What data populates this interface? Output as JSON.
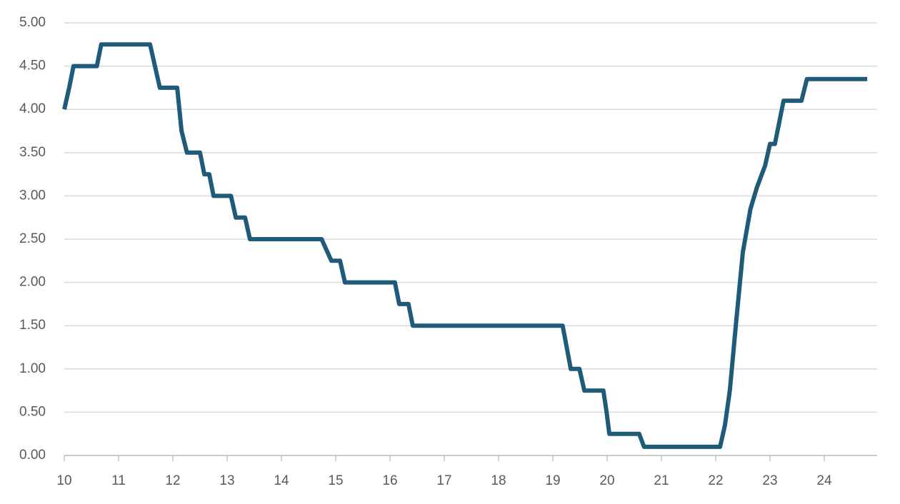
{
  "chart_data": {
    "type": "line",
    "x": [
      10,
      10.09,
      10.17,
      10.6,
      10.68,
      11.58,
      11.76,
      12.08,
      12.16,
      12.26,
      12.5,
      12.58,
      12.67,
      12.75,
      13.07,
      13.16,
      13.33,
      13.42,
      14.74,
      14.92,
      15.08,
      15.17,
      16.09,
      16.17,
      16.34,
      16.42,
      19.18,
      19.33,
      19.49,
      19.58,
      19.93,
      19.99,
      20.04,
      20.59,
      20.68,
      22.08,
      22.17,
      22.26,
      22.37,
      22.5,
      22.64,
      22.76,
      22.91,
      23.0,
      23.09,
      23.25,
      23.58,
      23.68,
      24.79
    ],
    "series": [
      {
        "color": "#1f5a78",
        "values": [
          4.0,
          4.25,
          4.5,
          4.5,
          4.75,
          4.75,
          4.25,
          4.25,
          3.75,
          3.5,
          3.5,
          3.25,
          3.25,
          3.0,
          3.0,
          2.75,
          2.75,
          2.5,
          2.5,
          2.25,
          2.25,
          2.0,
          2.0,
          1.75,
          1.75,
          1.5,
          1.5,
          1.0,
          1.0,
          0.75,
          0.75,
          0.5,
          0.25,
          0.25,
          0.1,
          0.1,
          0.35,
          0.75,
          1.5,
          2.35,
          2.85,
          3.1,
          3.35,
          3.6,
          3.6,
          4.1,
          4.1,
          4.35,
          4.35
        ]
      }
    ],
    "xlim": [
      10,
      25
    ],
    "xticks": [
      10,
      11,
      12,
      13,
      14,
      15,
      16,
      17,
      18,
      19,
      20,
      21,
      22,
      23,
      24
    ],
    "ylim": [
      0,
      5
    ],
    "yticks": [
      {
        "value": 0,
        "label": "0.00"
      },
      {
        "value": 0.5,
        "label": "0.50"
      },
      {
        "value": 1,
        "label": "1.00"
      },
      {
        "value": 1.5,
        "label": "1.50"
      },
      {
        "value": 2,
        "label": "2.00"
      },
      {
        "value": 2.5,
        "label": "2.50"
      },
      {
        "value": 3,
        "label": "3.00"
      },
      {
        "value": 3.5,
        "label": "3.50"
      },
      {
        "value": 4,
        "label": "4.00"
      },
      {
        "value": 4.5,
        "label": "4.50"
      },
      {
        "value": 5,
        "label": "5.00"
      }
    ],
    "grid": true
  }
}
